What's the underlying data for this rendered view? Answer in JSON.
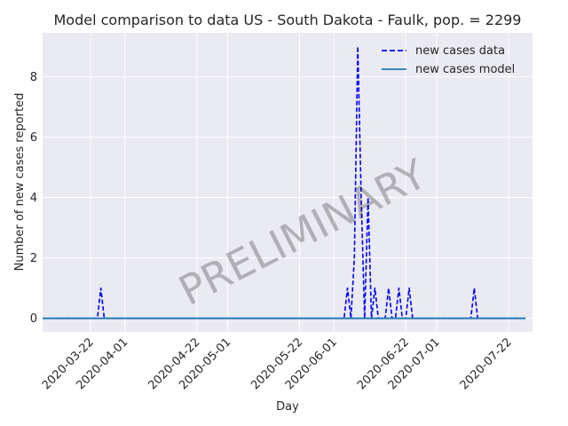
{
  "chart_data": {
    "type": "line",
    "title": "Model comparison to data US - South Dakota - Faulk, pop. = 2299",
    "xlabel": "Day",
    "ylabel": "Number of new cases reported",
    "watermark": "PRELIMINARY",
    "x_range": [
      "2020-03-08",
      "2020-07-29"
    ],
    "ylim": [
      -0.45,
      9.45
    ],
    "y_ticks": [
      0,
      2,
      4,
      6,
      8
    ],
    "x_ticks": [
      "2020-03-22",
      "2020-04-01",
      "2020-04-22",
      "2020-05-01",
      "2020-05-22",
      "2020-06-01",
      "2020-06-22",
      "2020-07-01",
      "2020-07-22"
    ],
    "grid": true,
    "legend_position": "top-right",
    "colors": {
      "data": "#0000ff",
      "model": "#1f77b4",
      "background": "#eaeaf2",
      "grid": "#ffffff"
    },
    "series": [
      {
        "name": "new cases data",
        "style": "dashed",
        "points": [
          [
            "2020-03-11",
            0
          ],
          [
            "2020-03-12",
            0
          ],
          [
            "2020-03-13",
            0
          ],
          [
            "2020-03-14",
            0
          ],
          [
            "2020-03-15",
            0
          ],
          [
            "2020-03-16",
            0
          ],
          [
            "2020-03-17",
            0
          ],
          [
            "2020-03-18",
            0
          ],
          [
            "2020-03-19",
            0
          ],
          [
            "2020-03-20",
            0
          ],
          [
            "2020-03-21",
            0
          ],
          [
            "2020-03-22",
            0
          ],
          [
            "2020-03-23",
            0
          ],
          [
            "2020-03-24",
            0
          ],
          [
            "2020-03-25",
            1
          ],
          [
            "2020-03-26",
            0
          ],
          [
            "2020-03-27",
            0
          ],
          [
            "2020-03-28",
            0
          ],
          [
            "2020-03-29",
            0
          ],
          [
            "2020-03-30",
            0
          ],
          [
            "2020-04-05",
            0
          ],
          [
            "2020-04-15",
            0
          ],
          [
            "2020-04-25",
            0
          ],
          [
            "2020-05-05",
            0
          ],
          [
            "2020-05-15",
            0
          ],
          [
            "2020-05-25",
            0
          ],
          [
            "2020-06-01",
            0
          ],
          [
            "2020-06-02",
            0
          ],
          [
            "2020-06-03",
            0
          ],
          [
            "2020-06-04",
            0
          ],
          [
            "2020-06-05",
            1
          ],
          [
            "2020-06-06",
            0
          ],
          [
            "2020-06-07",
            2
          ],
          [
            "2020-06-08",
            9
          ],
          [
            "2020-06-09",
            4
          ],
          [
            "2020-06-10",
            0
          ],
          [
            "2020-06-11",
            4
          ],
          [
            "2020-06-12",
            0
          ],
          [
            "2020-06-13",
            1
          ],
          [
            "2020-06-14",
            0
          ],
          [
            "2020-06-15",
            0
          ],
          [
            "2020-06-16",
            0
          ],
          [
            "2020-06-17",
            1
          ],
          [
            "2020-06-18",
            0
          ],
          [
            "2020-06-19",
            0
          ],
          [
            "2020-06-20",
            1
          ],
          [
            "2020-06-21",
            0
          ],
          [
            "2020-06-22",
            0
          ],
          [
            "2020-06-23",
            1
          ],
          [
            "2020-06-24",
            0
          ],
          [
            "2020-06-25",
            0
          ],
          [
            "2020-06-30",
            0
          ],
          [
            "2020-07-05",
            0
          ],
          [
            "2020-07-10",
            0
          ],
          [
            "2020-07-11",
            0
          ],
          [
            "2020-07-12",
            1
          ],
          [
            "2020-07-13",
            0
          ],
          [
            "2020-07-14",
            0
          ],
          [
            "2020-07-20",
            0
          ],
          [
            "2020-07-27",
            0
          ]
        ]
      },
      {
        "name": "new cases model",
        "style": "solid",
        "points": [
          [
            "2020-03-08",
            0
          ],
          [
            "2020-07-27",
            0
          ]
        ]
      }
    ]
  }
}
